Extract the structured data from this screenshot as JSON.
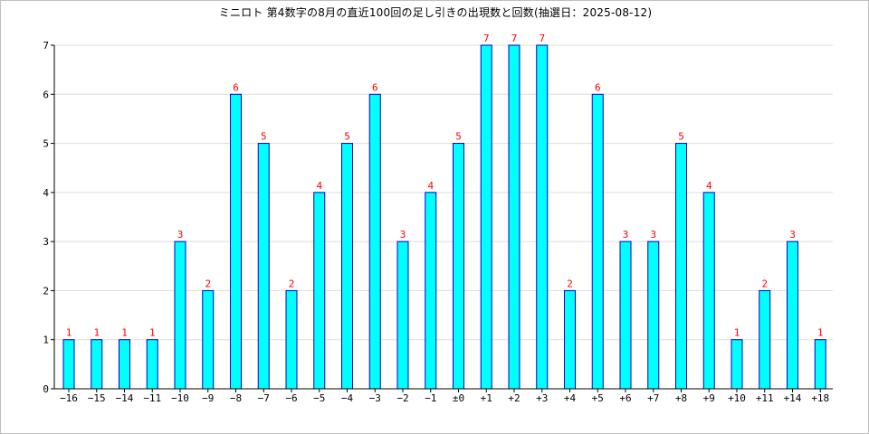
{
  "chart_data": {
    "type": "bar",
    "title": "ミニロト 第4数字の8月の直近100回の足し引きの出現数と回数(抽選日：2025-08-12)",
    "categories": [
      "−16",
      "−15",
      "−14",
      "−11",
      "−10",
      "−9",
      "−8",
      "−7",
      "−6",
      "−5",
      "−4",
      "−3",
      "−2",
      "−1",
      "±0",
      "+1",
      "+2",
      "+3",
      "+4",
      "+5",
      "+6",
      "+7",
      "+8",
      "+9",
      "+10",
      "+11",
      "+14",
      "+18"
    ],
    "values": [
      1,
      1,
      1,
      1,
      3,
      2,
      6,
      5,
      2,
      4,
      5,
      6,
      3,
      4,
      5,
      7,
      7,
      7,
      2,
      6,
      3,
      3,
      5,
      4,
      1,
      2,
      3,
      1
    ],
    "y_ticks": [
      0,
      1,
      2,
      3,
      4,
      5,
      6,
      7
    ],
    "ylim": [
      0,
      7
    ],
    "xlabel": "",
    "ylabel": "",
    "grid": "horizontal",
    "colors": {
      "bar_fill": "#00ffff",
      "bar_stroke": "#0000cc",
      "data_label": "#ff0000",
      "grid": "#dddddd",
      "axis": "#000000"
    }
  }
}
